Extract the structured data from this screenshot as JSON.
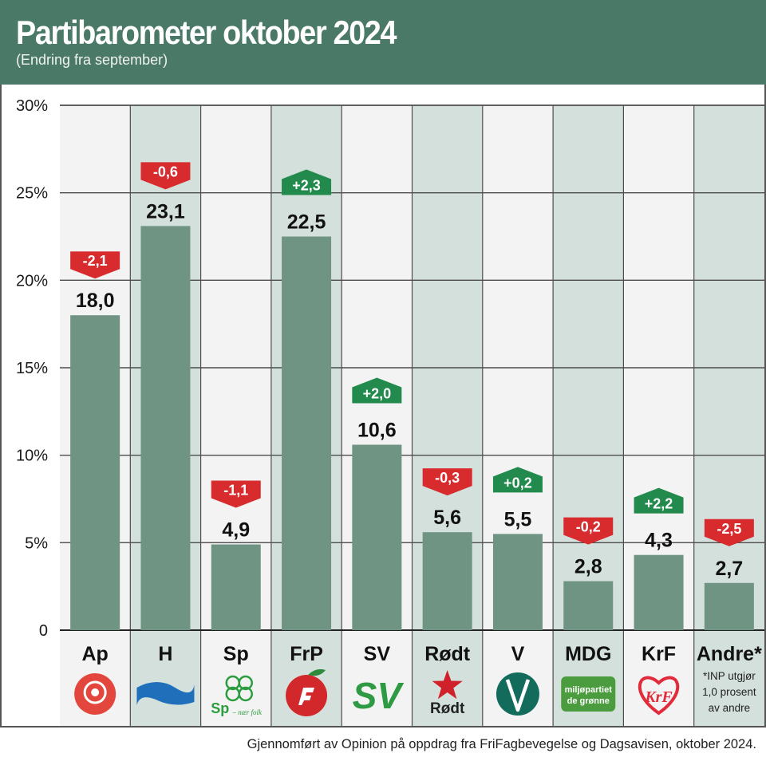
{
  "header": {
    "title": "Partibarometer oktober 2024",
    "subtitle": "(Endring fra september)"
  },
  "colors": {
    "header_bg": "#4a7a67",
    "bar": "#709484",
    "col_light": "#f3f3f3",
    "col_dark": "#d4e0dc",
    "grid": "#4d4d4d",
    "change_up": "#218a4c",
    "change_down": "#d82b2e"
  },
  "chart_data": {
    "type": "bar",
    "title": "Partibarometer oktober 2024",
    "subtitle": "(Endring fra september)",
    "ylim": [
      0,
      30
    ],
    "yticks": [
      "0",
      "5%",
      "10%",
      "15%",
      "20%",
      "25%",
      "30%"
    ],
    "grid": true,
    "categories": [
      "Ap",
      "H",
      "Sp",
      "FrP",
      "SV",
      "Rødt",
      "V",
      "MDG",
      "KrF",
      "Andre*"
    ],
    "values": [
      18.0,
      23.1,
      4.9,
      22.5,
      10.6,
      5.6,
      5.5,
      2.8,
      4.3,
      2.7
    ],
    "value_labels": [
      "18,0",
      "23,1",
      "4,9",
      "22,5",
      "10,6",
      "5,6",
      "5,5",
      "2,8",
      "4,3",
      "2,7"
    ],
    "changes": [
      -2.1,
      -0.6,
      -1.1,
      2.3,
      2.0,
      -0.3,
      0.2,
      -0.2,
      2.2,
      -2.5
    ],
    "change_labels": [
      "-2,1",
      "-0,6",
      "-1,1",
      "+2,3",
      "+2,0",
      "-0,3",
      "+0,2",
      "-0,2",
      "+2,2",
      "-2,5"
    ],
    "annotation": "*INP utgjør 1,0 prosent av andre"
  },
  "logos": {
    "Sp_text": "Sp",
    "Sp_slogan": "– nær folk",
    "SV_text": "SV",
    "Rodt_text": "Rødt",
    "V_text": "V",
    "MDG_line1": "miljøpartiet",
    "MDG_line2": "de grønne",
    "KrF_text": "KrF"
  },
  "annotation_lines": [
    "*INP utgjør",
    "1,0 prosent",
    "av andre"
  ],
  "footer": {
    "credit": "Gjennomført av Opinion på oppdrag fra FriFagbevegelse og  Dagsavisen, oktober 2024."
  }
}
